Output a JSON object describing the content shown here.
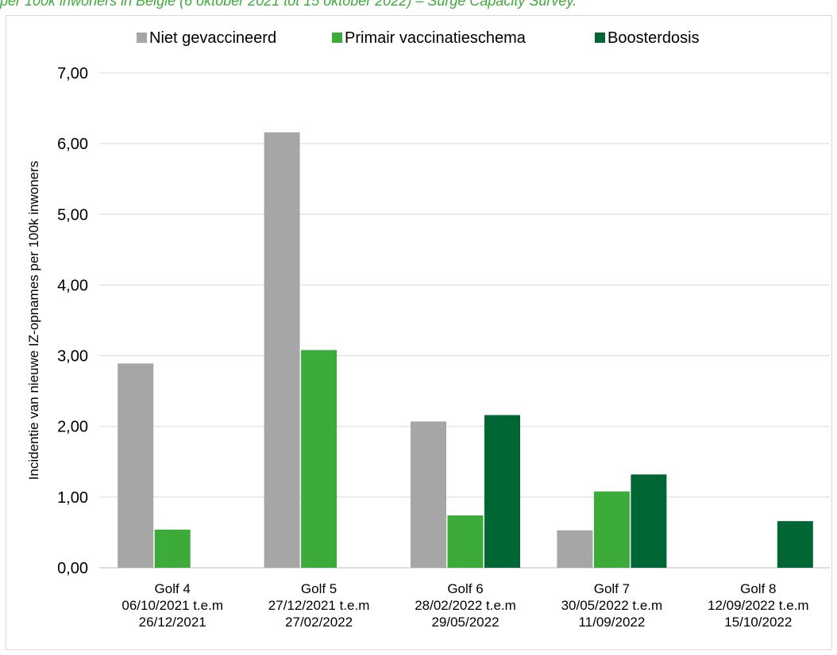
{
  "caption": "per 100k inwoners in België (6 oktober 2021 tot 15 oktober 2022) – Surge Capacity Survey.",
  "chart_data": {
    "type": "bar",
    "title": "",
    "xlabel": "",
    "ylabel": "Incidentie van nieuwe IZ-opnames per 100k inwoners",
    "ylim": [
      0,
      7
    ],
    "yticks": [
      "0,00",
      "1,00",
      "2,00",
      "3,00",
      "4,00",
      "5,00",
      "6,00",
      "7,00"
    ],
    "grid": true,
    "legend_position": "top",
    "categories": [
      [
        "Golf 4",
        "06/10/2021 t.e.m",
        "26/12/2021"
      ],
      [
        "Golf 5",
        "27/12/2021 t.e.m",
        "27/02/2022"
      ],
      [
        "Golf 6",
        "28/02/2022 t.e.m",
        "29/05/2022"
      ],
      [
        "Golf 7",
        "30/05/2022 t.e.m",
        "11/09/2022"
      ],
      [
        "Golf 8",
        "12/09/2022 t.e.m",
        "15/10/2022"
      ]
    ],
    "series": [
      {
        "name": "Niet gevaccineerd",
        "color": "#a6a6a6",
        "values": [
          2.89,
          6.16,
          2.07,
          0.53,
          null
        ]
      },
      {
        "name": "Primair vaccinatieschema",
        "color": "#3cab3a",
        "values": [
          0.54,
          3.08,
          0.74,
          1.08,
          null
        ]
      },
      {
        "name": "Boosterdosis",
        "color": "#006633",
        "values": [
          null,
          null,
          2.16,
          1.32,
          0.66
        ]
      }
    ]
  }
}
